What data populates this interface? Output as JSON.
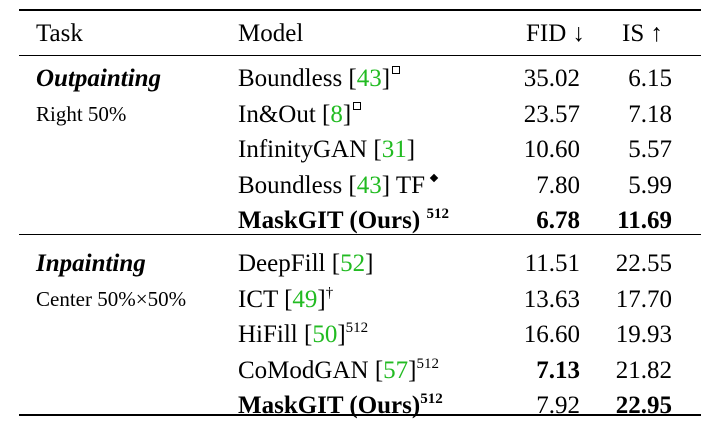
{
  "headers": {
    "task": "Task",
    "model": "Model",
    "fid": "FID ↓",
    "is": "IS ↑"
  },
  "groups": [
    {
      "task": "Outpainting",
      "subtitle": "Right 50%",
      "rows": [
        {
          "model": "Boundless [",
          "ref": "43",
          "close": "]",
          "mark": "square",
          "sup": "",
          "fid": "35.02",
          "is": "6.15",
          "fid_bold": false,
          "is_bold": false,
          "bold": false
        },
        {
          "model": "In&Out [",
          "ref": "8",
          "close": "]",
          "mark": "square",
          "sup": "",
          "fid": "23.57",
          "is": "7.18",
          "fid_bold": false,
          "is_bold": false,
          "bold": false
        },
        {
          "model": "InfinityGAN [",
          "ref": "31",
          "close": "]",
          "mark": "",
          "sup": "",
          "fid": "10.60",
          "is": "5.57",
          "fid_bold": false,
          "is_bold": false,
          "bold": false
        },
        {
          "model": "Boundless [",
          "ref": "43",
          "close": "] TF",
          "mark": "diamond",
          "sup": "",
          "fid": "7.80",
          "is": "5.99",
          "fid_bold": false,
          "is_bold": false,
          "bold": false
        },
        {
          "model": "MaskGIT (Ours) ",
          "ref": "",
          "close": "",
          "mark": "",
          "sup": "512",
          "fid": "6.78",
          "is": "11.69",
          "fid_bold": true,
          "is_bold": true,
          "bold": true
        }
      ]
    },
    {
      "task": "Inpainting",
      "subtitle": "Center 50%×50%",
      "rows": [
        {
          "model": "DeepFill [",
          "ref": "52",
          "close": "]",
          "mark": "",
          "sup": "",
          "fid": "11.51",
          "is": "22.55",
          "fid_bold": false,
          "is_bold": false,
          "bold": false
        },
        {
          "model": "ICT [",
          "ref": "49",
          "close": "]",
          "mark": "",
          "sup": "†",
          "fid": "13.63",
          "is": "17.70",
          "fid_bold": false,
          "is_bold": false,
          "bold": false
        },
        {
          "model": "HiFill [",
          "ref": "50",
          "close": "]",
          "mark": "",
          "sup": "512",
          "fid": "16.60",
          "is": "19.93",
          "fid_bold": false,
          "is_bold": false,
          "bold": false
        },
        {
          "model": "CoModGAN [",
          "ref": "57",
          "close": "]",
          "mark": "",
          "sup": "512",
          "fid": "7.13",
          "is": "21.82",
          "fid_bold": true,
          "is_bold": false,
          "bold": false
        },
        {
          "model": "MaskGIT (Ours)",
          "ref": "",
          "close": "",
          "mark": "",
          "sup": "512",
          "fid": "7.92",
          "is": "22.95",
          "fid_bold": false,
          "is_bold": true,
          "bold": true
        }
      ]
    }
  ]
}
